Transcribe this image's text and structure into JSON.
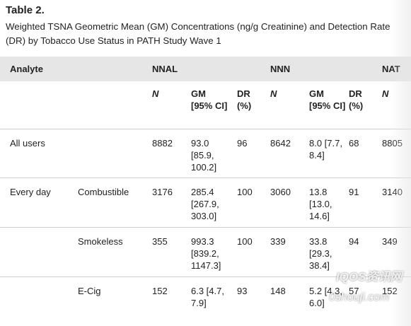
{
  "header": {
    "title": "Table 2.",
    "caption": "Weighted TSNA Geometric Mean (GM) Concentrations (ng/g Creatinine) and Detection Rate (DR) by Tobacco Use Status in PATH Study Wave 1"
  },
  "table": {
    "head": [
      "Analyte",
      "NNAL",
      "NNN",
      "NAT"
    ],
    "subhead": [
      "N",
      "GM [95% CI]",
      "DR (%)",
      "N",
      "GM [95% CI]",
      "DR (%)",
      "N"
    ],
    "rows": [
      {
        "group": "All users",
        "cells": [
          "8882",
          "93.0 [85.9, 100.2]",
          "96",
          "8642",
          "8.0 [7.7, 8.4]",
          "68",
          "8805"
        ]
      },
      {
        "group": "Every day",
        "type": "Combustible",
        "cells": [
          "3176",
          "285.4 [267.9, 303.0]",
          "100",
          "3060",
          "13.8 [13.0, 14.6]",
          "91",
          "3140"
        ]
      },
      {
        "type": "Smokeless",
        "cells": [
          "355",
          "993.3 [839.2, 1147.3]",
          "100",
          "339",
          "33.8 [29.3, 38.4]",
          "94",
          "349"
        ]
      },
      {
        "type": "E-Cig",
        "cells": [
          "152",
          "6.3 [4.7, 7.9]",
          "93",
          "148",
          "5.2 [4.3, 6.0]",
          "57",
          "152"
        ]
      }
    ]
  },
  "watermark": [
    "IQOS资讯网",
    "0shouji.com"
  ]
}
